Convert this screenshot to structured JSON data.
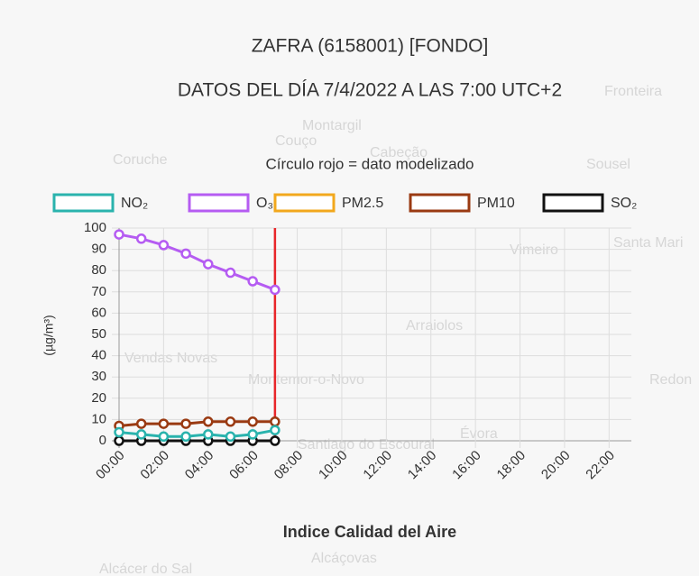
{
  "chart_data": {
    "type": "line",
    "title": "ZAFRA (6158001) [FONDO]",
    "subtitle": "DATOS DEL DÍA 7/4/2022 A LAS 7:00 UTC+2",
    "note": "Círculo rojo = dato modelizado",
    "ylabel": "(µg/m³)",
    "xlabel": "Indice Calidad del Aire",
    "categories": [
      "00:00",
      null,
      "02:00",
      null,
      "04:00",
      null,
      "06:00",
      null,
      "08:00",
      null,
      "10:00",
      null,
      "12:00",
      null,
      "14:00",
      null,
      "16:00",
      null,
      "18:00",
      null,
      "20:00",
      null,
      "22:00",
      null
    ],
    "series": [
      {
        "name": "NO₂",
        "color": "#2ab3ad",
        "values": [
          4,
          3,
          2,
          2,
          3,
          2,
          3,
          5,
          null,
          null,
          null,
          null,
          null,
          null,
          null,
          null,
          null,
          null,
          null,
          null,
          null,
          null,
          null,
          null
        ]
      },
      {
        "name": "O₃",
        "color": "#b55cf2",
        "values": [
          97,
          95,
          92,
          88,
          83,
          79,
          75,
          71,
          null,
          null,
          null,
          null,
          null,
          null,
          null,
          null,
          null,
          null,
          null,
          null,
          null,
          null,
          null,
          null
        ]
      },
      {
        "name": "PM2.5",
        "color": "#f2a81d",
        "values": [
          null,
          null,
          null,
          null,
          null,
          null,
          null,
          null,
          null,
          null,
          null,
          null,
          null,
          null,
          null,
          null,
          null,
          null,
          null,
          null,
          null,
          null,
          null,
          null
        ]
      },
      {
        "name": "PM10",
        "color": "#9a3a12",
        "values": [
          7,
          8,
          8,
          8,
          9,
          9,
          9,
          9,
          null,
          null,
          null,
          null,
          null,
          null,
          null,
          null,
          null,
          null,
          null,
          null,
          null,
          null,
          null,
          null
        ]
      },
      {
        "name": "SO₂",
        "color": "#111111",
        "values": [
          0,
          0,
          0,
          0,
          0,
          0,
          0,
          0,
          null,
          null,
          null,
          null,
          null,
          null,
          null,
          null,
          null,
          null,
          null,
          null,
          null,
          null,
          null,
          null
        ]
      }
    ],
    "current_index": 7,
    "current_color": "#e8262a",
    "ylim": [
      0,
      100
    ],
    "yticks": [
      0,
      10,
      20,
      30,
      40,
      50,
      60,
      70,
      80,
      90,
      100
    ],
    "grid": true,
    "legend": "top",
    "map_labels": [
      "Montargil",
      "Fronteira",
      "Couço",
      "Cabeção",
      "Coruche",
      "Sousel",
      "Vimeiro",
      "Santa Mari",
      "Arraiolos",
      "Vendas Novas",
      "Montemor-o-Novo",
      "Redon",
      "Évora",
      "Santiago do Escoural",
      "Alcáçovas",
      "Alcácer do Sal"
    ]
  }
}
